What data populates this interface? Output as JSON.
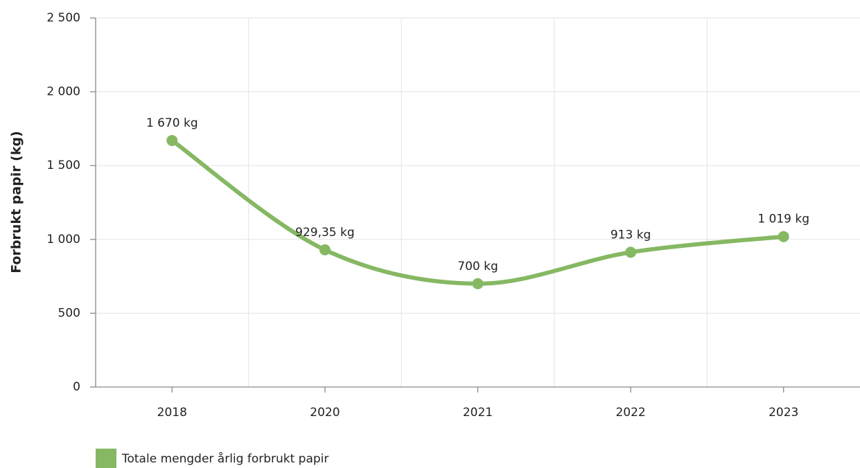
{
  "chart_data": {
    "type": "line",
    "y_label": "Forbrukt papir (kg)",
    "categories": [
      "2018",
      "2020",
      "2021",
      "2022",
      "2023"
    ],
    "series": [
      {
        "name": "Totale mengder årlig forbrukt papir",
        "color": "#86b863",
        "values": [
          1670,
          929.35,
          700,
          913,
          1019
        ],
        "value_labels": [
          "1 670 kg",
          "929,35 kg",
          "700 kg",
          "913 kg",
          "1 019 kg"
        ]
      }
    ],
    "ylim": [
      0,
      2500
    ],
    "yticks": [
      0,
      500,
      {
        "value": 1000,
        "label": "1 000"
      },
      {
        "value": 1500,
        "label": "1 500"
      },
      {
        "value": 2000,
        "label": "2 000"
      },
      {
        "value": 2500,
        "label": "2 500"
      }
    ],
    "grid": true,
    "legend": "bottom-left"
  }
}
